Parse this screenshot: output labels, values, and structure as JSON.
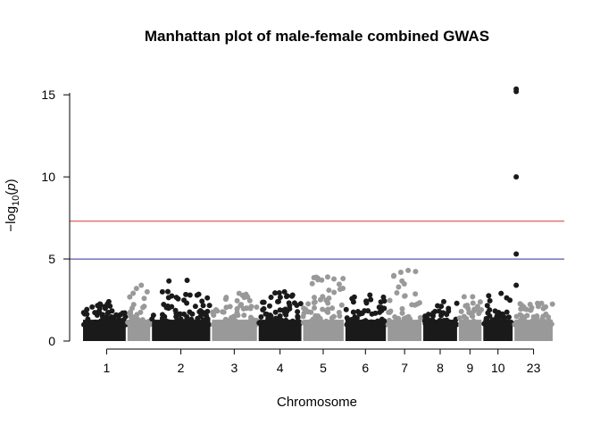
{
  "chart_data": {
    "type": "scatter",
    "subtype": "manhattan",
    "title": "Manhattan plot of male-female combined GWAS",
    "xlabel": "Chromosome",
    "ylabel_parts": {
      "prefix": "−log",
      "subscript": "10",
      "open": "(",
      "var": "p",
      "close": ")"
    },
    "ylim": [
      0,
      15.5
    ],
    "yticks": [
      0,
      5,
      10,
      15
    ],
    "grid": false,
    "legend": "none",
    "colors": {
      "odd": "#1a1a1a",
      "even": "#999999"
    },
    "thresholds": [
      {
        "value": 7.3,
        "color": "#e23232"
      },
      {
        "value": 5,
        "color": "#2b2bb0"
      }
    ],
    "chromosomes": [
      {
        "label": "1",
        "span": [
          0.0,
          1.0
        ],
        "max": 2.4,
        "mid": 0.55
      },
      {
        "label": "",
        "span": [
          1.0,
          1.55
        ],
        "max": 3.4,
        "mid": 1.27
      },
      {
        "label": "2",
        "span": [
          1.55,
          2.9
        ],
        "max": 3.7,
        "mid": 2.22
      },
      {
        "label": "3",
        "span": [
          2.9,
          3.95
        ],
        "max": 2.9,
        "mid": 3.42
      },
      {
        "label": "4",
        "span": [
          3.95,
          4.95
        ],
        "max": 3.0,
        "mid": 4.45
      },
      {
        "label": "5",
        "span": [
          4.95,
          5.9
        ],
        "max": 3.9,
        "mid": 5.42
      },
      {
        "label": "6",
        "span": [
          5.9,
          6.85
        ],
        "max": 2.8,
        "mid": 6.37
      },
      {
        "label": "7",
        "span": [
          6.85,
          7.65
        ],
        "max": 4.3,
        "mid": 7.25
      },
      {
        "label": "8",
        "span": [
          7.65,
          8.45
        ],
        "max": 2.4,
        "mid": 8.05
      },
      {
        "label": "9",
        "span": [
          8.45,
          9.0
        ],
        "max": 2.7,
        "mid": 8.72
      },
      {
        "label": "10",
        "span": [
          9.0,
          9.7
        ],
        "max": 2.9,
        "mid": 9.35
      },
      {
        "label": "23",
        "span": [
          9.7,
          10.6
        ],
        "max": 2.3,
        "mid": 10.15
      }
    ],
    "top_hits": [
      {
        "x": 9.76,
        "y": 15.35
      },
      {
        "x": 9.76,
        "y": 15.2
      },
      {
        "x": 9.76,
        "y": 10.0
      },
      {
        "x": 9.76,
        "y": 5.3
      },
      {
        "x": 9.76,
        "y": 3.4
      }
    ]
  }
}
